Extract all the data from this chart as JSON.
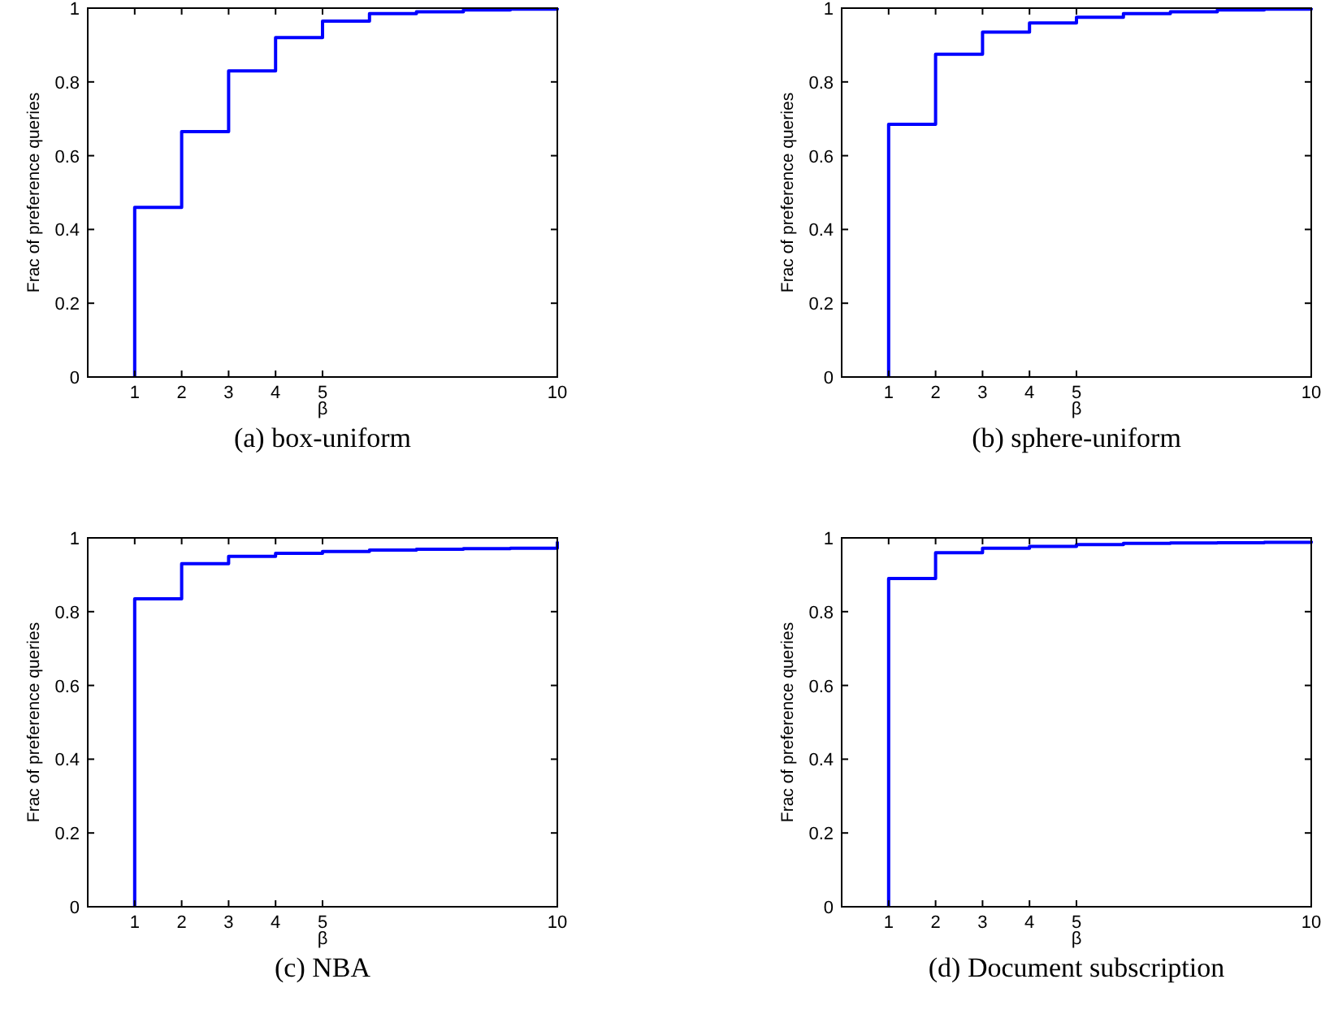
{
  "chart_data": [
    {
      "type": "step",
      "title": "(a)  box-uniform",
      "xlabel": "β",
      "ylabel": "Frac of preference queries",
      "xlim": [
        0,
        10
      ],
      "ylim": [
        0,
        1
      ],
      "xticks": [
        1,
        2,
        3,
        4,
        5,
        10
      ],
      "yticks": [
        0,
        0.2,
        0.4,
        0.6,
        0.8,
        1
      ],
      "grid": false,
      "series": [
        {
          "color": "#0000ff",
          "x": [
            1,
            1,
            2,
            3,
            4,
            5,
            6,
            7,
            8,
            9,
            10
          ],
          "values": [
            0,
            0.46,
            0.665,
            0.83,
            0.92,
            0.965,
            0.985,
            0.99,
            0.995,
            0.997,
            1.0
          ]
        }
      ]
    },
    {
      "type": "step",
      "title": "(b)  sphere-uniform",
      "xlabel": "β",
      "ylabel": "Frac of preference queries",
      "xlim": [
        0,
        10
      ],
      "ylim": [
        0,
        1
      ],
      "xticks": [
        1,
        2,
        3,
        4,
        5,
        10
      ],
      "yticks": [
        0,
        0.2,
        0.4,
        0.6,
        0.8,
        1
      ],
      "grid": false,
      "series": [
        {
          "color": "#0000ff",
          "x": [
            1,
            1,
            2,
            3,
            4,
            5,
            6,
            7,
            8,
            9,
            10
          ],
          "values": [
            0,
            0.685,
            0.875,
            0.935,
            0.96,
            0.975,
            0.985,
            0.99,
            0.995,
            0.997,
            1.0
          ]
        }
      ]
    },
    {
      "type": "step",
      "title": "(c)  NBA",
      "xlabel": "β",
      "ylabel": "Frac of preference queries",
      "xlim": [
        0,
        10
      ],
      "ylim": [
        0,
        1
      ],
      "xticks": [
        1,
        2,
        3,
        4,
        5,
        10
      ],
      "yticks": [
        0,
        0.2,
        0.4,
        0.6,
        0.8,
        1
      ],
      "grid": false,
      "series": [
        {
          "color": "#0000ff",
          "x": [
            1,
            1,
            2,
            3,
            4,
            5,
            6,
            7,
            8,
            9,
            10
          ],
          "values": [
            0,
            0.835,
            0.93,
            0.95,
            0.958,
            0.963,
            0.967,
            0.969,
            0.971,
            0.972,
            0.99
          ]
        }
      ]
    },
    {
      "type": "step",
      "title": "(d)  Document subscription",
      "xlabel": "β",
      "ylabel": "Frac of preference queries",
      "xlim": [
        0,
        10
      ],
      "ylim": [
        0,
        1
      ],
      "xticks": [
        1,
        2,
        3,
        4,
        5,
        10
      ],
      "yticks": [
        0,
        0.2,
        0.4,
        0.6,
        0.8,
        1
      ],
      "grid": false,
      "series": [
        {
          "color": "#0000ff",
          "x": [
            1,
            1,
            2,
            3,
            4,
            5,
            6,
            7,
            8,
            9,
            10
          ],
          "values": [
            0,
            0.89,
            0.96,
            0.972,
            0.977,
            0.982,
            0.985,
            0.986,
            0.987,
            0.988,
            0.992
          ]
        }
      ]
    }
  ]
}
